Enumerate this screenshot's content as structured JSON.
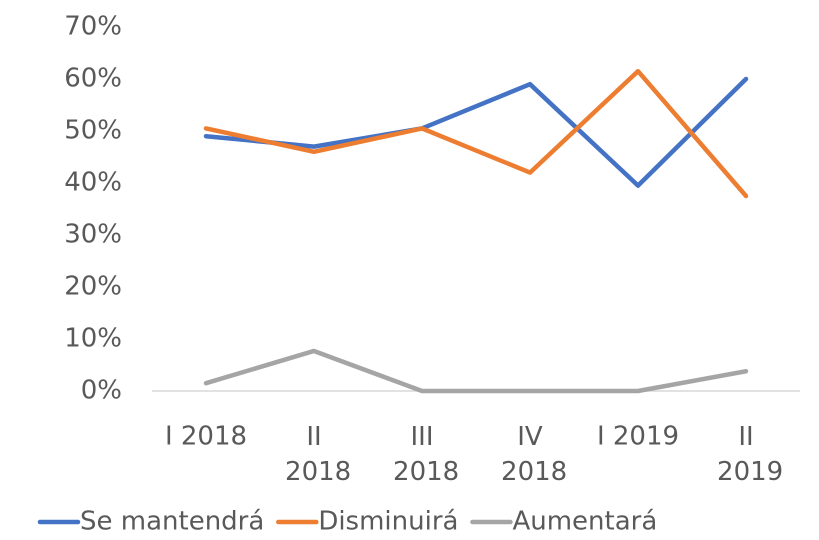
{
  "chart_data": {
    "type": "line",
    "categories": [
      "I 2018",
      "II 2018",
      "III 2018",
      "IV 2018",
      "I 2019",
      "II 2019"
    ],
    "series": [
      {
        "name": "Se mantendrá",
        "color": "#4472c4",
        "values": [
          49,
          47,
          50.5,
          59,
          39.5,
          60
        ]
      },
      {
        "name": "Disminuirá",
        "color": "#ed7d31",
        "values": [
          50.5,
          46,
          50.5,
          42,
          61.5,
          37.5
        ]
      },
      {
        "name": "Aumentará",
        "color": "#a5a5a5",
        "values": [
          1.5,
          7.7,
          0,
          0,
          0,
          3.8
        ]
      }
    ],
    "ylim": [
      0,
      70
    ],
    "yticks": [
      {
        "value": 0,
        "label": "0%"
      },
      {
        "value": 10,
        "label": "10%"
      },
      {
        "value": 20,
        "label": "20%"
      },
      {
        "value": 30,
        "label": "30%"
      },
      {
        "value": 40,
        "label": "40%"
      },
      {
        "value": 50,
        "label": "50%"
      },
      {
        "value": 60,
        "label": "60%"
      },
      {
        "value": 70,
        "label": "70%"
      }
    ],
    "grid": false,
    "legend": "bottom"
  }
}
